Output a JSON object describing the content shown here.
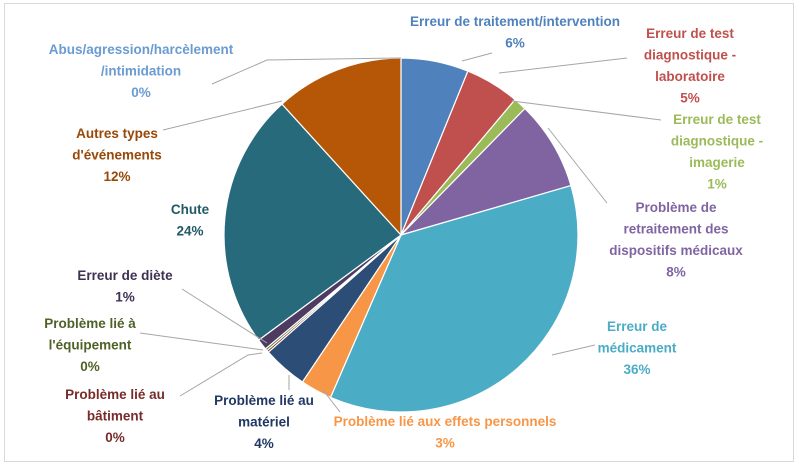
{
  "chart_data": {
    "type": "pie",
    "title": "",
    "slices": [
      {
        "name": "Erreur de traitement/intervention",
        "lines": [
          "Erreur de traitement/intervention"
        ],
        "percent_label": "6%",
        "value": 6.2,
        "color": "#4F81BD"
      },
      {
        "name": "Erreur de test diagnostique - laboratoire",
        "lines": [
          "Erreur de test",
          "diagnostique -",
          "laboratoire"
        ],
        "percent_label": "5%",
        "value": 5.0,
        "color": "#C0504D"
      },
      {
        "name": "Erreur de test diagnostique - imagerie",
        "lines": [
          "Erreur de test",
          "diagnostique -",
          "imagerie"
        ],
        "percent_label": "1%",
        "value": 1.2,
        "color": "#9BBB59"
      },
      {
        "name": "Problème de retraitement des dispositifs médicaux",
        "lines": [
          "Problème de",
          "retraitement des",
          "dispositifs médicaux"
        ],
        "percent_label": "8%",
        "value": 8.2,
        "color": "#8064A2"
      },
      {
        "name": "Erreur de médicament",
        "lines": [
          "Erreur de",
          "médicament"
        ],
        "percent_label": "36%",
        "value": 36.2,
        "color": "#4BACC6"
      },
      {
        "name": "Problème lié aux effets personnels",
        "lines": [
          "Problème lié aux effets personnels"
        ],
        "percent_label": "3%",
        "value": 2.9,
        "color": "#F79646"
      },
      {
        "name": "Problème lié au matériel",
        "lines": [
          "Problème lié au",
          "matériel"
        ],
        "percent_label": "4%",
        "value": 4.1,
        "color": "#2C4D75"
      },
      {
        "name": "Problème lié au bâtiment",
        "lines": [
          "Problème lié au",
          "bâtiment"
        ],
        "percent_label": "0%",
        "value": 0.2,
        "color": "#772C2A"
      },
      {
        "name": "Problème lié à l'équipement",
        "lines": [
          "Problème lié à",
          "l'équipement"
        ],
        "percent_label": "0%",
        "value": 0.2,
        "color": "#5F7530"
      },
      {
        "name": "Erreur de diète",
        "lines": [
          "Erreur de diète"
        ],
        "percent_label": "1%",
        "value": 1.0,
        "color": "#4D3B62"
      },
      {
        "name": "Chute",
        "lines": [
          "Chute"
        ],
        "percent_label": "24%",
        "value": 23.5,
        "color": "#276A7C"
      },
      {
        "name": "Autres types d'événements",
        "lines": [
          "Autres types",
          "d'événements"
        ],
        "percent_label": "12%",
        "value": 11.8,
        "color": "#B65708"
      },
      {
        "name": "Abus/agression/harcèlement/intimidation",
        "lines": [
          "Abus/agression/harcèlement",
          "/intimidation"
        ],
        "percent_label": "0%",
        "value": 0.0,
        "color": "#5B9BD5"
      }
    ],
    "label_colors": {
      "Erreur de traitement/intervention": "#4F81BD",
      "Erreur de test diagnostique - laboratoire": "#C0504D",
      "Erreur de test diagnostique - imagerie": "#9BBB59",
      "Problème de retraitement des dispositifs médicaux": "#8064A2",
      "Erreur de médicament": "#4BACC6",
      "Problème lié aux effets personnels": "#F79646",
      "Problème lié au matériel": "#1F3864",
      "Problème lié au bâtiment": "#772C2A",
      "Problème lié à l'équipement": "#4F6228",
      "Erreur de diète": "#3F3151",
      "Chute": "#215968",
      "Autres types d'événements": "#984807",
      "Abus/agression/harcèlement/intimidation": "#6A9BD1"
    },
    "start_angle": "12 o'clock",
    "direction": "clockwise",
    "legend": "none"
  }
}
